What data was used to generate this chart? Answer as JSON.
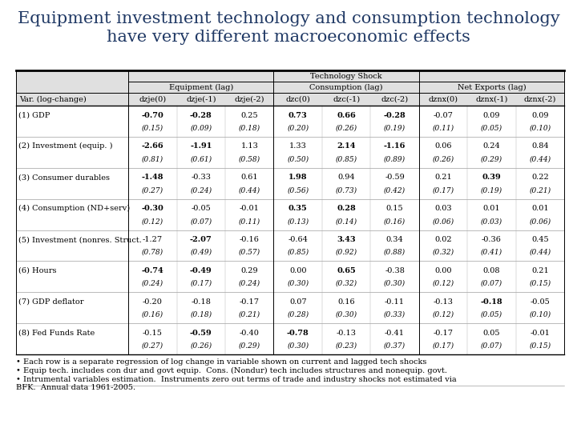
{
  "title": "Equipment investment technology and consumption technology\nhave very different macroeconomic effects",
  "title_color": "#1F3864",
  "header1": "Technology Shock",
  "header2a": "Equipment (lag)",
  "header2b": "Consumption (lag)",
  "header2c": "Net Exports (lag)",
  "col_headers": [
    "Var. (log-change)",
    "dzje(0)",
    "dzje(-1)",
    "dzje(-2)",
    "dzc(0)",
    "dzc(-1)",
    "dzc(-2)",
    "dznx(0)",
    "dznx(-1)",
    "dznx(-2)"
  ],
  "rows": [
    {
      "label": "(1) GDP",
      "coefs": [
        "-0.70",
        "-0.28",
        "0.25",
        "0.73",
        "0.66",
        "-0.28",
        "-0.07",
        "0.09",
        "0.09"
      ],
      "ses": [
        "(0.15)",
        "(0.09)",
        "(0.18)",
        "(0.20)",
        "(0.26)",
        "(0.19)",
        "(0.11)",
        "(0.05)",
        "(0.10)"
      ],
      "bold_coefs": [
        true,
        true,
        false,
        true,
        true,
        true,
        false,
        false,
        false
      ]
    },
    {
      "label": "(2) Investment (equip. )",
      "coefs": [
        "-2.66",
        "-1.91",
        "1.13",
        "1.33",
        "2.14",
        "-1.16",
        "0.06",
        "0.24",
        "0.84"
      ],
      "ses": [
        "(0.81)",
        "(0.61)",
        "(0.58)",
        "(0.50)",
        "(0.85)",
        "(0.89)",
        "(0.26)",
        "(0.29)",
        "(0.44)"
      ],
      "bold_coefs": [
        true,
        true,
        false,
        false,
        true,
        true,
        false,
        false,
        false
      ]
    },
    {
      "label": "(3) Consumer durables",
      "coefs": [
        "-1.48",
        "-0.33",
        "0.61",
        "1.98",
        "0.94",
        "-0.59",
        "0.21",
        "0.39",
        "0.22"
      ],
      "ses": [
        "(0.27)",
        "(0.24)",
        "(0.44)",
        "(0.56)",
        "(0.73)",
        "(0.42)",
        "(0.17)",
        "(0.19)",
        "(0.21)"
      ],
      "bold_coefs": [
        true,
        false,
        false,
        true,
        false,
        false,
        false,
        true,
        false
      ]
    },
    {
      "label": "(4) Consumption (ND+serv)",
      "coefs": [
        "-0.30",
        "-0.05",
        "-0.01",
        "0.35",
        "0.28",
        "0.15",
        "0.03",
        "0.01",
        "0.01"
      ],
      "ses": [
        "(0.12)",
        "(0.07)",
        "(0.11)",
        "(0.13)",
        "(0.14)",
        "(0.16)",
        "(0.06)",
        "(0.03)",
        "(0.06)"
      ],
      "bold_coefs": [
        true,
        false,
        false,
        true,
        true,
        false,
        false,
        false,
        false
      ]
    },
    {
      "label": "(5) Investment (nonres. Struct.",
      "coefs": [
        "-1.27",
        "-2.07",
        "-0.16",
        "-0.64",
        "3.43",
        "0.34",
        "0.02",
        "-0.36",
        "0.45"
      ],
      "ses": [
        "(0.78)",
        "(0.49)",
        "(0.57)",
        "(0.85)",
        "(0.92)",
        "(0.88)",
        "(0.32)",
        "(0.41)",
        "(0.44)"
      ],
      "bold_coefs": [
        false,
        true,
        false,
        false,
        true,
        false,
        false,
        false,
        false
      ]
    },
    {
      "label": "(6) Hours",
      "coefs": [
        "-0.74",
        "-0.49",
        "0.29",
        "0.00",
        "0.65",
        "-0.38",
        "0.00",
        "0.08",
        "0.21"
      ],
      "ses": [
        "(0.24)",
        "(0.17)",
        "(0.24)",
        "(0.30)",
        "(0.32)",
        "(0.30)",
        "(0.12)",
        "(0.07)",
        "(0.15)"
      ],
      "bold_coefs": [
        true,
        true,
        false,
        false,
        true,
        false,
        false,
        false,
        false
      ]
    },
    {
      "label": "(7) GDP deflator",
      "coefs": [
        "-0.20",
        "-0.18",
        "-0.17",
        "0.07",
        "0.16",
        "-0.11",
        "-0.13",
        "-0.18",
        "-0.05"
      ],
      "ses": [
        "(0.16)",
        "(0.18)",
        "(0.21)",
        "(0.28)",
        "(0.30)",
        "(0.33)",
        "(0.12)",
        "(0.05)",
        "(0.10)"
      ],
      "bold_coefs": [
        false,
        false,
        false,
        false,
        false,
        false,
        false,
        true,
        false
      ]
    },
    {
      "label": "(8) Fed Funds Rate",
      "coefs": [
        "-0.15",
        "-0.59",
        "-0.40",
        "-0.78",
        "-0.13",
        "-0.41",
        "-0.17",
        "0.05",
        "-0.01"
      ],
      "ses": [
        "(0.27)",
        "(0.26)",
        "(0.29)",
        "(0.30)",
        "(0.23)",
        "(0.37)",
        "(0.17)",
        "(0.07)",
        "(0.15)"
      ],
      "bold_coefs": [
        false,
        true,
        false,
        true,
        false,
        false,
        false,
        false,
        false
      ]
    }
  ],
  "footnotes": [
    "• Each row is a separate regression of log change in variable shown on current and lagged tech shocks",
    "• Equip tech. includes con dur and govt equip.  Cons. (Nondur) tech includes structures and nonequip. govt.",
    "• Intrumental variables estimation.  Instruments zero out terms of trade and industry shocks not estimated via\nBFK.  Annual data 1961-2005."
  ],
  "bg_color": "#FFFFFF",
  "line_color": "#000000",
  "title_fontsize": 15,
  "header_fontsize": 7,
  "data_fontsize": 7,
  "footnote_fontsize": 7
}
